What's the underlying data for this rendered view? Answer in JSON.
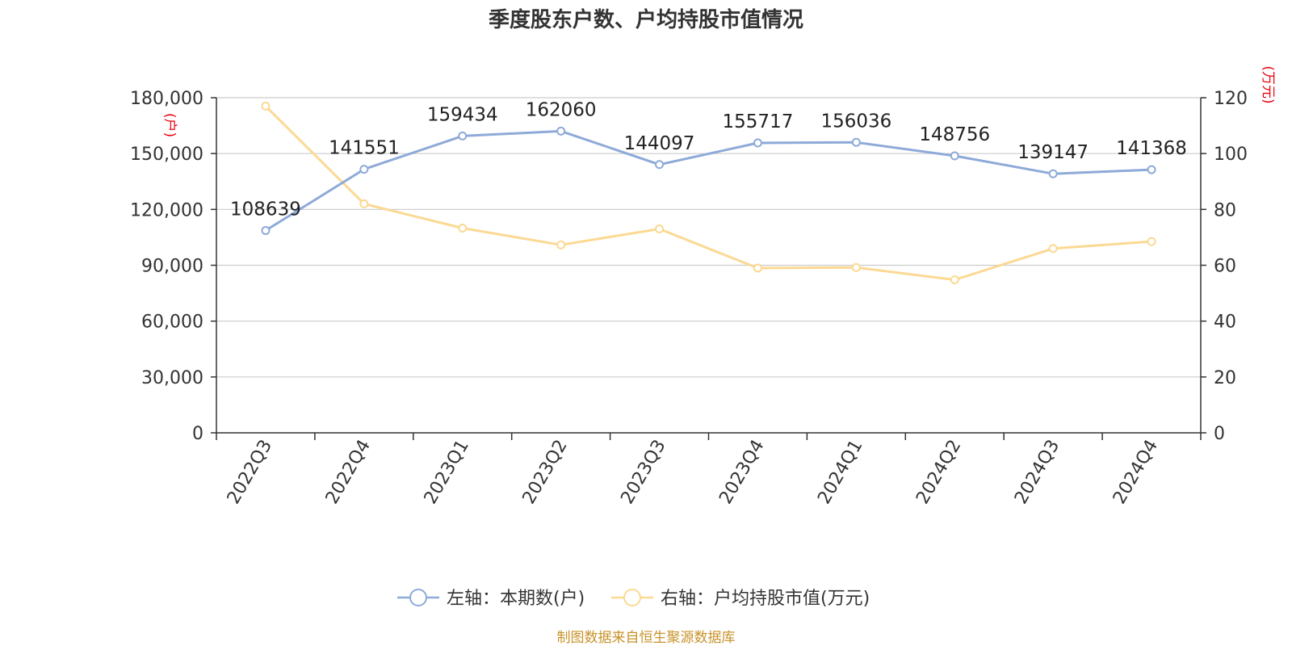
{
  "chart_data": {
    "type": "line",
    "title": "季度股东户数、户均持股市值情况",
    "categories": [
      "2022Q3",
      "2022Q4",
      "2023Q1",
      "2023Q2",
      "2023Q3",
      "2023Q4",
      "2024Q1",
      "2024Q2",
      "2024Q3",
      "2024Q4"
    ],
    "series": [
      {
        "name": "左轴：本期数(户)",
        "axis": "left",
        "color": "#8eaad8",
        "values": [
          108639,
          141551,
          159434,
          162060,
          144097,
          155717,
          156036,
          148756,
          139147,
          141368
        ],
        "labels": [
          "108639",
          "141551",
          "159434",
          "162060",
          "144097",
          "155717",
          "156036",
          "148756",
          "139147",
          "141368"
        ]
      },
      {
        "name": "右轴：户均持股市值(万元)",
        "axis": "right",
        "color": "#fbd993",
        "values": [
          117.0,
          82.0,
          73.3,
          67.3,
          73.0,
          59.0,
          59.2,
          54.8,
          66.0,
          68.5
        ]
      }
    ],
    "y_left": {
      "unit": "(户)",
      "min": 0,
      "max": 180000,
      "ticks": [
        0,
        30000,
        60000,
        90000,
        120000,
        150000,
        180000
      ],
      "tick_labels": [
        "0",
        "30,000",
        "60,000",
        "90,000",
        "120,000",
        "150,000",
        "180,000"
      ]
    },
    "y_right": {
      "unit": "(万元)",
      "min": 0,
      "max": 120,
      "ticks": [
        0,
        20,
        40,
        60,
        80,
        100,
        120
      ],
      "tick_labels": [
        "0",
        "20",
        "40",
        "60",
        "80",
        "100",
        "120"
      ]
    },
    "grid": true,
    "legend_position": "bottom-center",
    "source": "制图数据来自恒生聚源数据库"
  }
}
